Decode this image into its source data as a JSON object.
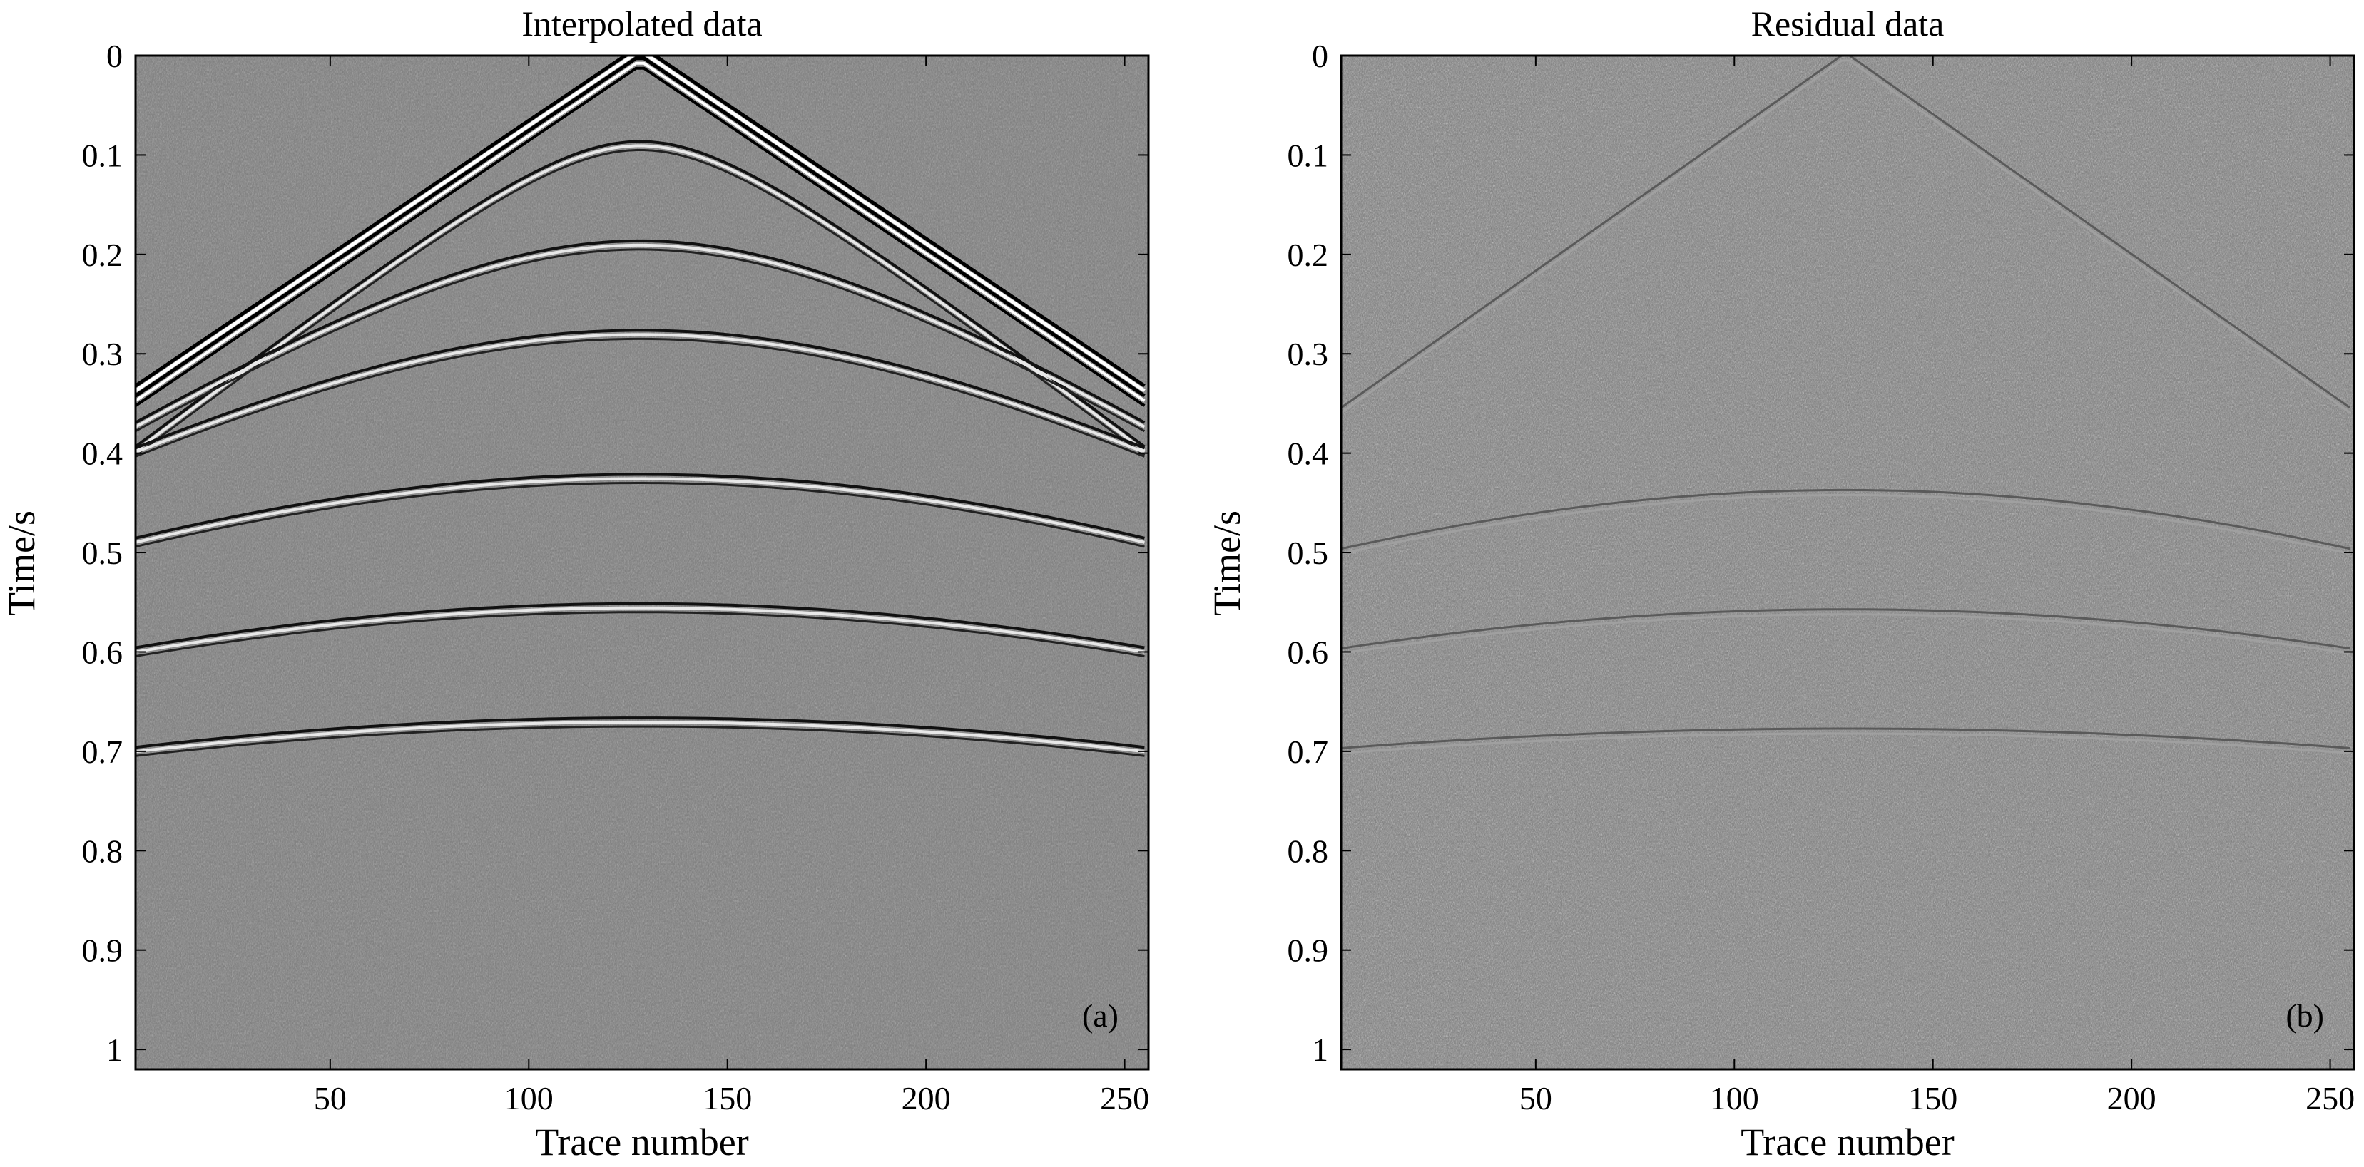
{
  "figure": {
    "panels": 2
  },
  "chart_data": [
    {
      "type": "heatmap",
      "title": "Interpolated data",
      "panel_label": "(a)",
      "xlabel": "Trace number",
      "ylabel": "Time/s",
      "xlim": [
        1,
        256
      ],
      "ylim": [
        1.02,
        0
      ],
      "y_reversed": true,
      "xticks": [
        50,
        100,
        150,
        200,
        250
      ],
      "yticks": [
        0,
        0.1,
        0.2,
        0.3,
        0.4,
        0.5,
        0.6,
        0.7,
        0.8,
        0.9,
        1
      ],
      "colormap": "gray",
      "background_color": "#7a7a7a",
      "grid": false,
      "events": [
        {
          "kind": "linear-direct",
          "apex_trace": 128,
          "apex_time": 0.0,
          "edge_time": 0.345
        },
        {
          "kind": "hyperbola",
          "apex_trace": 128,
          "apex_time": 0.09,
          "edge_time": 0.4
        },
        {
          "kind": "hyperbola",
          "apex_trace": 128,
          "apex_time": 0.19,
          "edge_time": 0.375
        },
        {
          "kind": "hyperbola",
          "apex_trace": 128,
          "apex_time": 0.28,
          "edge_time": 0.4
        },
        {
          "kind": "hyperbola",
          "apex_trace": 128,
          "apex_time": 0.425,
          "edge_time": 0.49
        },
        {
          "kind": "hyperbola",
          "apex_trace": 128,
          "apex_time": 0.555,
          "edge_time": 0.6
        },
        {
          "kind": "hyperbola",
          "apex_trace": 128,
          "apex_time": 0.67,
          "edge_time": 0.7
        }
      ]
    },
    {
      "type": "heatmap",
      "title": "Residual data",
      "panel_label": "(b)",
      "xlabel": "Trace number",
      "ylabel": "Time/s",
      "xlim": [
        1,
        256
      ],
      "ylim": [
        1.02,
        0
      ],
      "y_reversed": true,
      "xticks": [
        50,
        100,
        150,
        200,
        250
      ],
      "yticks": [
        0,
        0.1,
        0.2,
        0.3,
        0.4,
        0.5,
        0.6,
        0.7,
        0.8,
        0.9,
        1
      ],
      "colormap": "gray",
      "background_color": "#7a7a7a",
      "grid": false,
      "events": [
        {
          "kind": "linear-direct-faint",
          "apex_trace": 128,
          "apex_time": 0.0,
          "edge_time": 0.36
        },
        {
          "kind": "hyperbola-faint",
          "apex_trace": 128,
          "apex_time": 0.44,
          "edge_time": 0.5
        },
        {
          "kind": "hyperbola-faint",
          "apex_trace": 128,
          "apex_time": 0.56,
          "edge_time": 0.6
        },
        {
          "kind": "hyperbola-faint",
          "apex_trace": 128,
          "apex_time": 0.68,
          "edge_time": 0.7
        }
      ]
    }
  ]
}
